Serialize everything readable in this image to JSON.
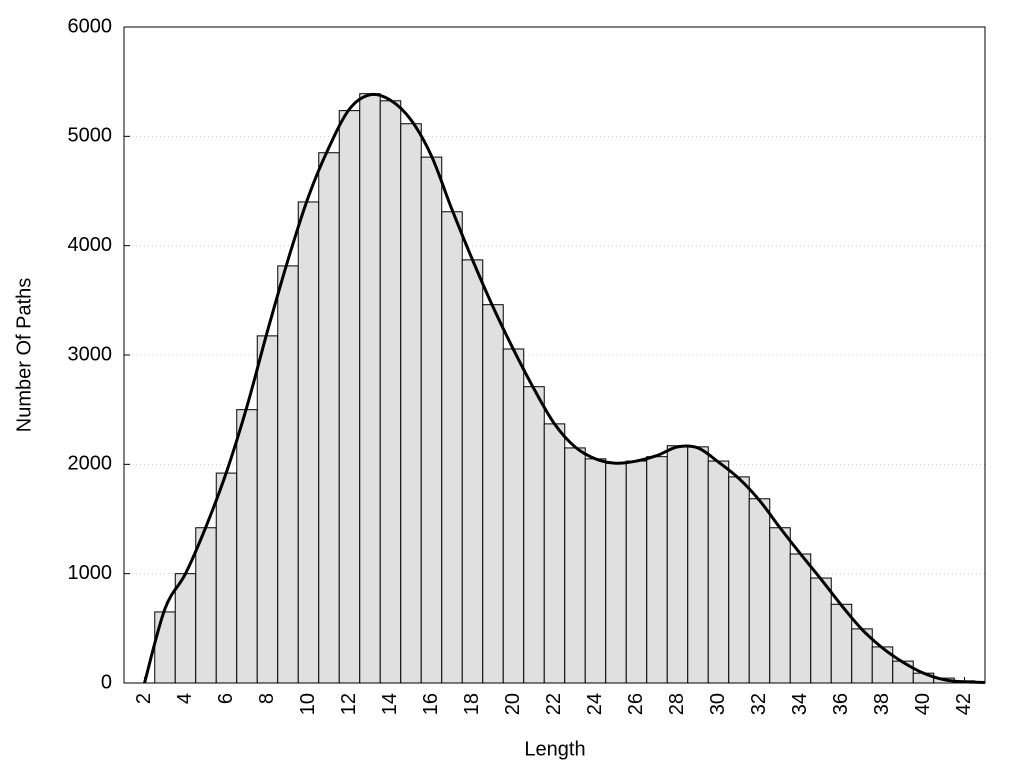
{
  "chart_data": {
    "type": "histogram",
    "xlabel": "Length",
    "ylabel": "Number Of Paths",
    "bins": [
      2.5,
      3.5,
      4.5,
      5.5,
      6.5,
      7.5,
      8.5,
      9.5,
      10.5,
      11.5,
      12.5,
      13.5,
      14.5,
      15.5,
      16.5,
      17.5,
      18.5,
      19.5,
      20.5,
      21.5,
      22.5,
      23.5,
      24.5,
      25.5,
      26.5,
      27.5,
      28.5,
      29.5,
      30.5,
      31.5,
      32.5,
      33.5,
      34.5,
      35.5,
      36.5,
      37.5,
      38.5,
      39.5,
      40.5,
      41.5,
      42.5
    ],
    "values": [
      650,
      1000,
      1420,
      1920,
      2500,
      3175,
      3815,
      4400,
      4850,
      5235,
      5390,
      5325,
      5115,
      4810,
      4310,
      3870,
      3460,
      3055,
      2710,
      2370,
      2150,
      2050,
      2010,
      2030,
      2070,
      2170,
      2160,
      2030,
      1885,
      1685,
      1420,
      1180,
      960,
      720,
      495,
      330,
      200,
      90,
      45,
      20
    ],
    "color": "#e0e0e0",
    "line": {
      "x": [
        2,
        3,
        4,
        5,
        6,
        7,
        8,
        9,
        10,
        11,
        12,
        13,
        14,
        15,
        16,
        17,
        18,
        19,
        20,
        21,
        22,
        23,
        24,
        25,
        26,
        27,
        28,
        29,
        30,
        31,
        32,
        33,
        34,
        35,
        36,
        37,
        38,
        39,
        40,
        41,
        42,
        43
      ],
      "values": [
        0,
        680,
        1000,
        1430,
        1930,
        2530,
        3220,
        3870,
        4450,
        4900,
        5250,
        5380,
        5330,
        5150,
        4820,
        4330,
        3870,
        3440,
        3050,
        2690,
        2370,
        2160,
        2050,
        2010,
        2030,
        2080,
        2160,
        2150,
        2020,
        1870,
        1670,
        1420,
        1180,
        950,
        710,
        490,
        320,
        190,
        90,
        30,
        10,
        5
      ],
      "color": "#000000"
    },
    "xlim": [
      1,
      43
    ],
    "ylim": [
      0,
      6000
    ],
    "xticks": [
      2,
      4,
      6,
      8,
      10,
      12,
      14,
      16,
      18,
      20,
      22,
      24,
      26,
      28,
      30,
      32,
      34,
      36,
      38,
      40,
      42
    ],
    "yticks": [
      0,
      1000,
      2000,
      3000,
      4000,
      5000,
      6000
    ],
    "grid": true
  }
}
